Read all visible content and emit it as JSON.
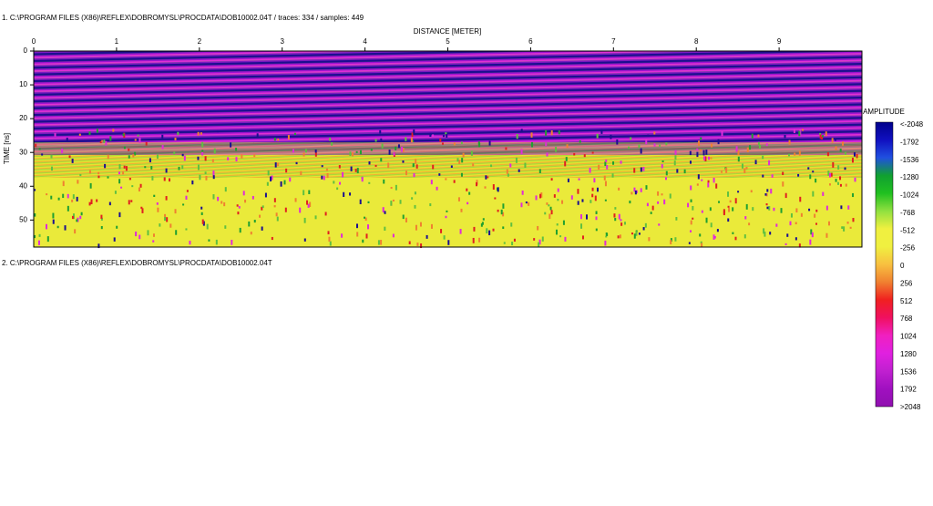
{
  "header": {
    "line1": "1. C:\\PROGRAM FILES (X86)\\REFLEX\\DOBROMYSL\\PROCDATA\\DOB10002.04T / traces: 334 / samples: 449",
    "line2": "2. C:\\PROGRAM FILES (X86)\\REFLEX\\DOBROMYSL\\PROCDATA\\DOB10002.04T"
  },
  "plot": {
    "xlabel": "DISTANCE [METER]",
    "ylabel": "TIME [ns]",
    "xlim": [
      0,
      10
    ],
    "xticks": [
      0,
      1,
      2,
      3,
      4,
      5,
      6,
      7,
      8,
      9
    ],
    "ylim": [
      0,
      58
    ],
    "yticks": [
      0,
      10,
      20,
      30,
      40,
      50
    ]
  },
  "colorbar": {
    "title": "AMPLITUDE",
    "ticks": [
      {
        "value": -2048,
        "label": "<-2048"
      },
      -1792,
      -1536,
      -1280,
      -1024,
      -768,
      -512,
      -256,
      0,
      256,
      512,
      768,
      1024,
      1280,
      1536,
      1792,
      {
        "value": 2048,
        "label": ">2048"
      }
    ],
    "colors": [
      "#00008b",
      "#1010c0",
      "#2050e0",
      "#10a030",
      "#20c020",
      "#90e040",
      "#f0f040",
      "#f0f040",
      "#f8c040",
      "#f08030",
      "#f02020",
      "#f01060",
      "#f020c0",
      "#e020e0",
      "#c020d0",
      "#a010c0",
      "#9010b0"
    ]
  }
}
